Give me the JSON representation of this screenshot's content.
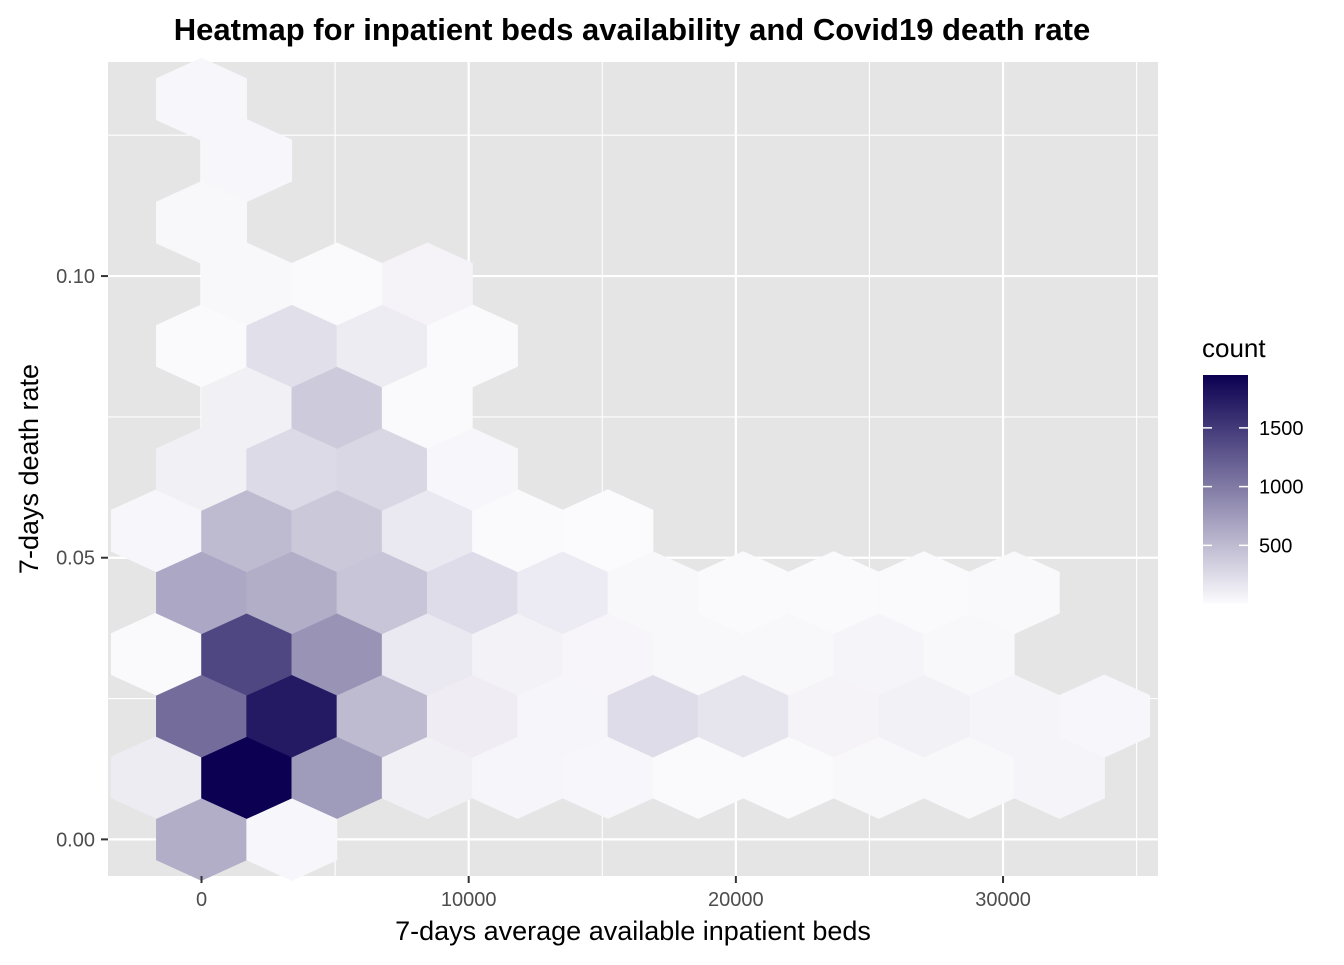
{
  "chart_data": {
    "type": "heatmap",
    "subtype": "hexbin",
    "title": "Heatmap for inpatient beds availability and Covid19 death rate",
    "xlabel": "7-days average available inpatient beds",
    "ylabel": "7-days death rate",
    "xlim": [
      -3500,
      35800
    ],
    "ylim": [
      -0.0065,
      0.138
    ],
    "x_ticks": [
      0,
      10000,
      20000,
      30000
    ],
    "x_tick_labels": [
      "0",
      "10000",
      "20000",
      "30000"
    ],
    "y_ticks": [
      0.0,
      0.05,
      0.1
    ],
    "y_tick_labels": [
      "0.00",
      "0.05",
      "0.10"
    ],
    "legend": {
      "title": "count",
      "position": "right",
      "breaks": [
        500,
        1000,
        1500
      ],
      "break_labels": [
        "500",
        "1000",
        "1500"
      ],
      "range": [
        1,
        1950
      ],
      "low_color": "#fcfbfd",
      "high_color": "#0b0051"
    },
    "grid": true,
    "panel_background": "#e5e5e5",
    "grid_color": "#ffffff",
    "hex_width": 3380,
    "hex_row_spacing": 0.01096,
    "hexbins": [
      {
        "x": 0,
        "y": 0.0,
        "count": 600
      },
      {
        "x": 3380,
        "y": 0.0,
        "count": 40
      },
      {
        "x": -1690,
        "y": 0.011,
        "count": 120
      },
      {
        "x": 1690,
        "y": 0.011,
        "count": 1950
      },
      {
        "x": 5070,
        "y": 0.011,
        "count": 750
      },
      {
        "x": 8450,
        "y": 0.011,
        "count": 90
      },
      {
        "x": 11830,
        "y": 0.011,
        "count": 50
      },
      {
        "x": 15210,
        "y": 0.011,
        "count": 40
      },
      {
        "x": 18590,
        "y": 0.011,
        "count": 20
      },
      {
        "x": 21970,
        "y": 0.011,
        "count": 15
      },
      {
        "x": 25350,
        "y": 0.011,
        "count": 30
      },
      {
        "x": 28730,
        "y": 0.011,
        "count": 30
      },
      {
        "x": 32110,
        "y": 0.011,
        "count": 55
      },
      {
        "x": 0,
        "y": 0.0219,
        "count": 1100
      },
      {
        "x": 3380,
        "y": 0.0219,
        "count": 1750
      },
      {
        "x": 6760,
        "y": 0.0219,
        "count": 500
      },
      {
        "x": 10140,
        "y": 0.0219,
        "count": 110
      },
      {
        "x": 13520,
        "y": 0.0219,
        "count": 50
      },
      {
        "x": 16900,
        "y": 0.0219,
        "count": 240
      },
      {
        "x": 20280,
        "y": 0.0219,
        "count": 180
      },
      {
        "x": 23660,
        "y": 0.0219,
        "count": 60
      },
      {
        "x": 27040,
        "y": 0.0219,
        "count": 80
      },
      {
        "x": 30420,
        "y": 0.0219,
        "count": 55
      },
      {
        "x": 33800,
        "y": 0.0219,
        "count": 40
      },
      {
        "x": -1690,
        "y": 0.0329,
        "count": 15
      },
      {
        "x": 1690,
        "y": 0.0329,
        "count": 1400
      },
      {
        "x": 5070,
        "y": 0.0329,
        "count": 800
      },
      {
        "x": 8450,
        "y": 0.0329,
        "count": 150
      },
      {
        "x": 11830,
        "y": 0.0329,
        "count": 70
      },
      {
        "x": 15210,
        "y": 0.0329,
        "count": 45
      },
      {
        "x": 18590,
        "y": 0.0329,
        "count": 35
      },
      {
        "x": 21970,
        "y": 0.0329,
        "count": 30
      },
      {
        "x": 25350,
        "y": 0.0329,
        "count": 55
      },
      {
        "x": 28730,
        "y": 0.0329,
        "count": 35
      },
      {
        "x": 0,
        "y": 0.0438,
        "count": 650
      },
      {
        "x": 3380,
        "y": 0.0438,
        "count": 600
      },
      {
        "x": 6760,
        "y": 0.0438,
        "count": 420
      },
      {
        "x": 10140,
        "y": 0.0438,
        "count": 240
      },
      {
        "x": 13520,
        "y": 0.0438,
        "count": 130
      },
      {
        "x": 16900,
        "y": 0.0438,
        "count": 30
      },
      {
        "x": 20280,
        "y": 0.0438,
        "count": 20
      },
      {
        "x": 23660,
        "y": 0.0438,
        "count": 20
      },
      {
        "x": 27040,
        "y": 0.0438,
        "count": 20
      },
      {
        "x": 30420,
        "y": 0.0438,
        "count": 25
      },
      {
        "x": -1690,
        "y": 0.0548,
        "count": 40
      },
      {
        "x": 1690,
        "y": 0.0548,
        "count": 500
      },
      {
        "x": 5070,
        "y": 0.0548,
        "count": 400
      },
      {
        "x": 8450,
        "y": 0.0548,
        "count": 150
      },
      {
        "x": 11830,
        "y": 0.0548,
        "count": 15
      },
      {
        "x": 15210,
        "y": 0.0548,
        "count": 8
      },
      {
        "x": 0,
        "y": 0.0657,
        "count": 90
      },
      {
        "x": 3380,
        "y": 0.0657,
        "count": 260
      },
      {
        "x": 6760,
        "y": 0.0657,
        "count": 280
      },
      {
        "x": 10140,
        "y": 0.0657,
        "count": 40
      },
      {
        "x": 1690,
        "y": 0.0767,
        "count": 90
      },
      {
        "x": 5070,
        "y": 0.0767,
        "count": 380
      },
      {
        "x": 8450,
        "y": 0.0767,
        "count": 20
      },
      {
        "x": 0,
        "y": 0.0876,
        "count": 20
      },
      {
        "x": 3380,
        "y": 0.0876,
        "count": 220
      },
      {
        "x": 6760,
        "y": 0.0876,
        "count": 120
      },
      {
        "x": 10140,
        "y": 0.0876,
        "count": 15
      },
      {
        "x": 1690,
        "y": 0.0986,
        "count": 35
      },
      {
        "x": 5070,
        "y": 0.0986,
        "count": 20
      },
      {
        "x": 8450,
        "y": 0.0986,
        "count": 60
      },
      {
        "x": 0,
        "y": 0.1095,
        "count": 30
      },
      {
        "x": 1690,
        "y": 0.1205,
        "count": 40
      },
      {
        "x": 0,
        "y": 0.1314,
        "count": 40
      }
    ]
  }
}
